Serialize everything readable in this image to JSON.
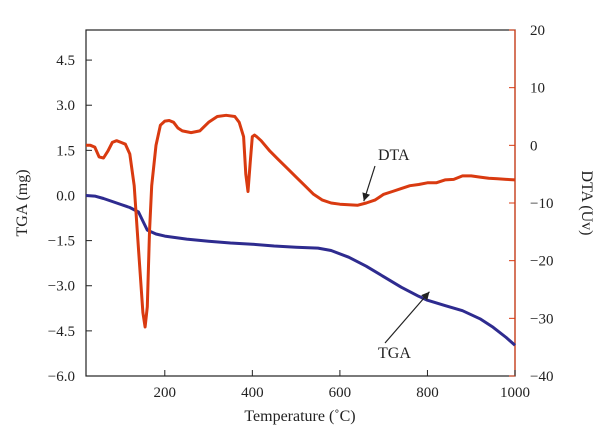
{
  "chart_data": {
    "type": "line",
    "xlabel": "Temperature (˚C)",
    "ylabel_left": "TGA (mg)",
    "ylabel_right": "DTA (Uv)",
    "xlim": [
      20,
      1000
    ],
    "ylim_left": [
      -6.0,
      5.5
    ],
    "ylim_right": [
      -40,
      20
    ],
    "x_ticks": [
      {
        "value": 200,
        "label": "200"
      },
      {
        "value": 400,
        "label": "400"
      },
      {
        "value": 600,
        "label": "600"
      },
      {
        "value": 800,
        "label": "800"
      },
      {
        "value": 1000,
        "label": "1000"
      }
    ],
    "y_left_ticks": [
      {
        "value": 4.5,
        "label": "4.5"
      },
      {
        "value": 3.0,
        "label": "3.0"
      },
      {
        "value": 1.5,
        "label": "1.5"
      },
      {
        "value": 0.0,
        "label": "0.0"
      },
      {
        "value": -1.5,
        "label": "−1.5"
      },
      {
        "value": -3.0,
        "label": "−3.0"
      },
      {
        "value": -4.5,
        "label": "−4.5"
      },
      {
        "value": -6.0,
        "label": "−6.0"
      }
    ],
    "y_right_ticks": [
      {
        "value": 20,
        "label": "20"
      },
      {
        "value": 10,
        "label": "10"
      },
      {
        "value": 0,
        "label": "0"
      },
      {
        "value": -10,
        "label": "−10"
      },
      {
        "value": -20,
        "label": "−20"
      },
      {
        "value": -30,
        "label": "−30"
      },
      {
        "value": -40,
        "label": "−40"
      }
    ],
    "grid": false,
    "series": [
      {
        "name": "TGA",
        "axis": "left",
        "color": "#2e2b8f",
        "x": [
          20,
          40,
          60,
          80,
          100,
          120,
          140,
          150,
          160,
          180,
          200,
          250,
          300,
          350,
          400,
          450,
          500,
          550,
          580,
          620,
          660,
          700,
          740,
          780,
          800,
          840,
          880,
          920,
          950,
          980,
          1000
        ],
        "y": [
          0.0,
          -0.02,
          -0.1,
          -0.2,
          -0.3,
          -0.4,
          -0.55,
          -0.85,
          -1.15,
          -1.28,
          -1.35,
          -1.45,
          -1.52,
          -1.58,
          -1.62,
          -1.68,
          -1.72,
          -1.75,
          -1.83,
          -2.05,
          -2.35,
          -2.7,
          -3.05,
          -3.35,
          -3.48,
          -3.66,
          -3.83,
          -4.1,
          -4.38,
          -4.72,
          -4.98
        ]
      },
      {
        "name": "DTA",
        "axis": "right",
        "color": "#d93a10",
        "x": [
          20,
          30,
          40,
          50,
          60,
          70,
          80,
          90,
          100,
          110,
          120,
          130,
          140,
          150,
          155,
          160,
          165,
          170,
          180,
          190,
          200,
          210,
          220,
          230,
          240,
          260,
          280,
          300,
          320,
          340,
          360,
          370,
          380,
          385,
          390,
          395,
          400,
          405,
          410,
          420,
          440,
          460,
          480,
          500,
          520,
          540,
          560,
          580,
          600,
          620,
          640,
          660,
          680,
          700,
          720,
          740,
          760,
          780,
          800,
          820,
          840,
          860,
          880,
          900,
          920,
          940,
          960,
          980,
          1000
        ],
        "y": [
          0.0,
          0.0,
          -0.3,
          -2.0,
          -2.2,
          -1.0,
          0.5,
          0.8,
          0.5,
          0.2,
          -1.5,
          -7.0,
          -18.0,
          -29.0,
          -31.5,
          -28.0,
          -15.0,
          -7.0,
          0.0,
          3.5,
          4.2,
          4.3,
          4.0,
          3.0,
          2.5,
          2.2,
          2.5,
          4.0,
          5.0,
          5.2,
          5.0,
          4.0,
          1.5,
          -5.0,
          -8.0,
          -3.0,
          1.5,
          1.8,
          1.5,
          0.8,
          -1.0,
          -2.5,
          -4.0,
          -5.5,
          -7.0,
          -8.5,
          -9.5,
          -10.0,
          -10.2,
          -10.3,
          -10.4,
          -10.0,
          -9.5,
          -8.5,
          -8.0,
          -7.5,
          -7.0,
          -6.8,
          -6.5,
          -6.5,
          -6.0,
          -5.9,
          -5.3,
          -5.3,
          -5.5,
          -5.7,
          -5.8,
          -5.9,
          -6.0
        ]
      }
    ],
    "annotations": [
      {
        "text": "DTA",
        "target_series": "DTA",
        "x": 650,
        "y": -10.2
      },
      {
        "text": "TGA",
        "target_series": "TGA",
        "x": 800,
        "y": -3.3
      }
    ],
    "colors": {
      "tga": "#2e2b8f",
      "dta": "#d93a10",
      "left_axis": "#222222",
      "right_axis": "#d93a10"
    }
  }
}
